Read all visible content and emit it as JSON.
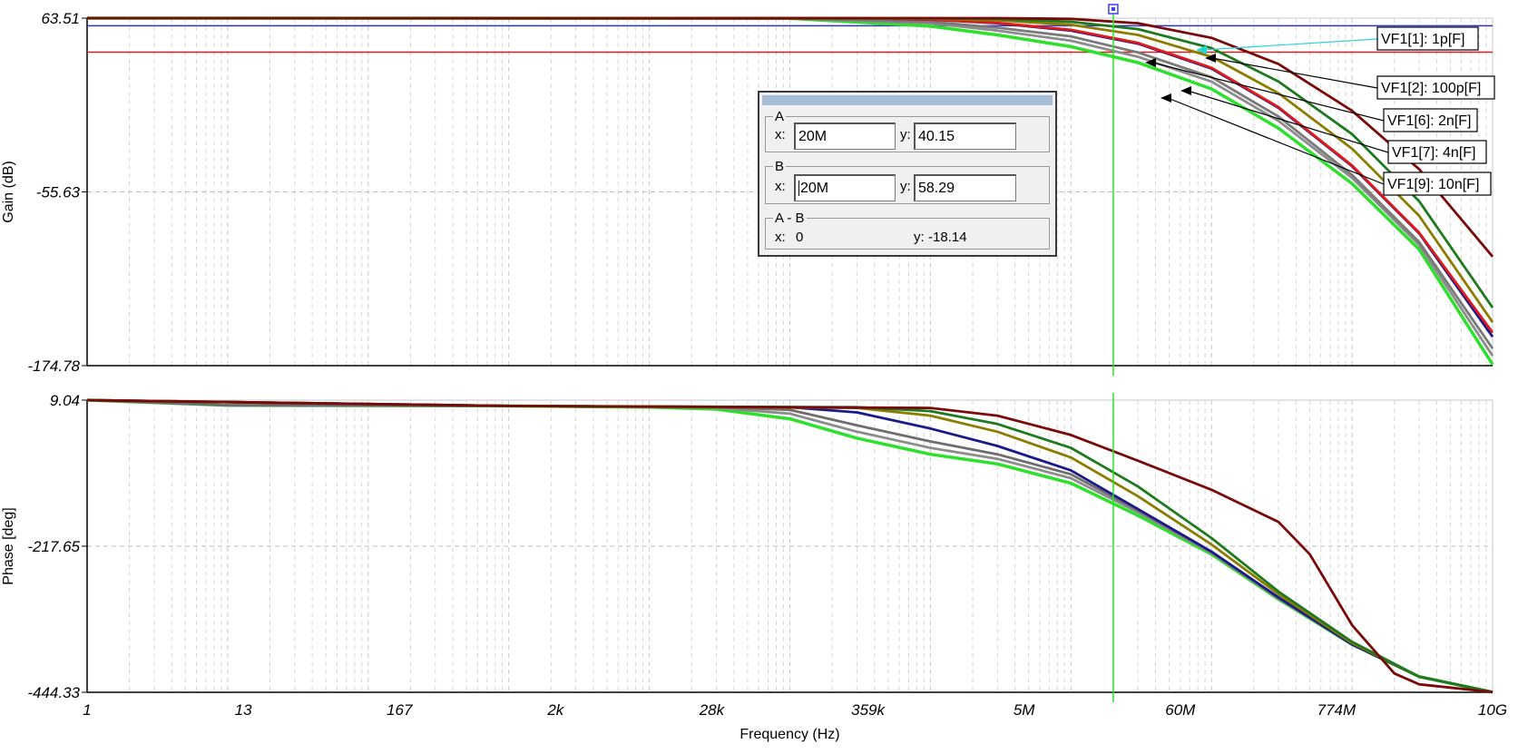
{
  "chart_data": [
    {
      "type": "line",
      "ylabel": "Gain (dB)",
      "y_ticks": [
        "63.51",
        "-55.63",
        "-174.78"
      ],
      "ylim": [
        -174.78,
        63.51
      ],
      "xscale": "log",
      "xlim": [
        1,
        10000000000
      ],
      "grid": true,
      "horizontal_markers": [
        {
          "y": 58.29,
          "color": "#2b35c8"
        },
        {
          "y": 40.15,
          "color": "#d42020"
        }
      ],
      "cursor_x": 20000000,
      "labels": [
        "VF1[1]: 1p[F]",
        "VF1[2]: 100p[F]",
        "VF1[6]: 2n[F]",
        "VF1[7]: 4n[F]",
        "VF1[9]: 10n[F]"
      ],
      "series": [
        {
          "color": "#2ce02c",
          "x": [
            1,
            100000,
            1000000,
            3000000,
            10000000,
            30000000,
            100000000,
            300000000,
            1000000000,
            3000000000,
            10000000000
          ],
          "y": [
            63.5,
            63.3,
            58,
            52,
            44,
            33,
            15,
            -12,
            -50,
            -95,
            -174
          ]
        },
        {
          "color": "#8c8c8c",
          "x": [
            1,
            100000,
            1000000,
            3000000,
            10000000,
            30000000,
            100000000,
            300000000,
            1000000000,
            3000000000,
            10000000000
          ],
          "y": [
            63.5,
            63.4,
            60,
            55,
            48,
            37,
            20,
            -7,
            -46,
            -92,
            -168
          ]
        },
        {
          "color": "#7a7a7a",
          "x": [
            1,
            100000,
            1000000,
            3000000,
            10000000,
            30000000,
            100000000,
            300000000,
            1000000000,
            3000000000,
            10000000000
          ],
          "y": [
            63.5,
            63.4,
            61,
            57,
            51,
            40,
            23,
            -4,
            -44,
            -90,
            -163
          ]
        },
        {
          "color": "#1a1a8a",
          "x": [
            1,
            300000,
            1000000,
            3000000,
            10000000,
            30000000,
            100000000,
            300000000,
            1000000000,
            3000000000,
            10000000000
          ],
          "y": [
            63.5,
            63.5,
            62.5,
            60,
            55,
            46,
            29,
            2,
            -38,
            -84,
            -155
          ]
        },
        {
          "color": "#e01b1b",
          "x": [
            1,
            300000,
            1000000,
            3000000,
            10000000,
            30000000,
            100000000,
            300000000,
            1000000000,
            3000000000,
            10000000000
          ],
          "y": [
            63.5,
            63.5,
            62.6,
            60.3,
            55.5,
            46.5,
            29.5,
            2.5,
            -37.5,
            -83.5,
            -152
          ]
        },
        {
          "color": "#8b7d00",
          "x": [
            1,
            1000000,
            3000000,
            10000000,
            30000000,
            100000000,
            300000000,
            1000000000,
            3000000000,
            10000000000
          ],
          "y": [
            63.5,
            63.2,
            62,
            59,
            52,
            37,
            12,
            -26,
            -72,
            -145
          ]
        },
        {
          "color": "#1e7a1e",
          "x": [
            1,
            1000000,
            3000000,
            10000000,
            30000000,
            100000000,
            300000000,
            1000000000,
            3000000000,
            10000000000
          ],
          "y": [
            63.5,
            63.4,
            63,
            61,
            56,
            43,
            20,
            -16,
            -62,
            -135
          ]
        },
        {
          "color": "#7a0a0a",
          "x": [
            1,
            3000000,
            10000000,
            30000000,
            100000000,
            300000000,
            1000000000,
            3000000000,
            10000000000
          ],
          "y": [
            63.5,
            63.5,
            63,
            60,
            50,
            32,
            0,
            -40,
            -100
          ]
        }
      ]
    },
    {
      "type": "line",
      "xlabel": "Frequency (Hz)",
      "ylabel": "Phase [deg]",
      "y_ticks": [
        "9.04",
        "-217.65",
        "-444.33"
      ],
      "ylim": [
        -444.33,
        9.04
      ],
      "xscale": "log",
      "xlim": [
        1,
        10000000000
      ],
      "x_ticks": [
        "1",
        "13",
        "167",
        "2k",
        "28k",
        "359k",
        "5M",
        "60M",
        "774M",
        "10G"
      ],
      "grid": true,
      "cursor_x": 20000000,
      "series": [
        {
          "color": "#2ce02c",
          "x": [
            1,
            10,
            1000,
            10000,
            30000,
            100000,
            300000,
            1000000,
            3000000,
            10000000,
            30000000,
            100000000,
            300000000,
            1000000000,
            3000000000,
            10000000000
          ],
          "y": [
            9,
            1,
            0,
            -2,
            -5,
            -20,
            -50,
            -75,
            -90,
            -120,
            -170,
            -230,
            -300,
            -370,
            -420,
            -444
          ]
        },
        {
          "color": "#8c8c8c",
          "x": [
            1,
            10,
            1000,
            10000,
            30000,
            100000,
            300000,
            1000000,
            3000000,
            10000000,
            30000000,
            100000000,
            300000000,
            1000000000,
            3000000000,
            10000000000
          ],
          "y": [
            9,
            1,
            0,
            -1.5,
            -3,
            -12,
            -40,
            -65,
            -82,
            -112,
            -165,
            -228,
            -299,
            -370,
            -420,
            -444
          ]
        },
        {
          "color": "#6e6e6e",
          "x": [
            1,
            10,
            1000,
            10000,
            30000,
            100000,
            300000,
            1000000,
            3000000,
            10000000,
            30000000,
            100000000,
            300000000,
            1000000000,
            3000000000,
            10000000000
          ],
          "y": [
            9,
            1,
            0,
            -1,
            -2,
            -6,
            -30,
            -55,
            -75,
            -106,
            -162,
            -227,
            -298,
            -370,
            -420,
            -444
          ]
        },
        {
          "color": "#1a1a8a",
          "x": [
            1,
            1000,
            100000,
            300000,
            1000000,
            3000000,
            10000000,
            30000000,
            100000000,
            300000000,
            1000000000,
            3000000000,
            10000000000
          ],
          "y": [
            9,
            0,
            -2,
            -10,
            -35,
            -62,
            -100,
            -160,
            -226,
            -297,
            -370,
            -420,
            -444
          ]
        },
        {
          "color": "#8b7d00",
          "x": [
            1,
            1000,
            300000,
            1000000,
            3000000,
            10000000,
            30000000,
            100000000,
            300000000,
            1000000000,
            3000000000,
            10000000000
          ],
          "y": [
            9,
            0,
            -3,
            -15,
            -40,
            -80,
            -140,
            -215,
            -292,
            -368,
            -420,
            -444
          ]
        },
        {
          "color": "#1e7a1e",
          "x": [
            1,
            1000,
            300000,
            1000000,
            3000000,
            10000000,
            30000000,
            100000000,
            300000000,
            1000000000,
            3000000000,
            10000000000
          ],
          "y": [
            9,
            0,
            -2,
            -8,
            -28,
            -65,
            -125,
            -205,
            -288,
            -366,
            -420,
            -444
          ]
        },
        {
          "color": "#7a0a0a",
          "x": [
            1,
            1000,
            1000000,
            3000000,
            10000000,
            30000000,
            100000000,
            300000000,
            500000000,
            1000000000,
            2000000000,
            3000000000,
            10000000000
          ],
          "y": [
            9,
            0,
            -3,
            -15,
            -45,
            -85,
            -130,
            -180,
            -230,
            -340,
            -415,
            -432,
            -444
          ]
        }
      ]
    }
  ],
  "readout": {
    "a_legend": "A",
    "a_x_label": "x:",
    "a_x": "20M",
    "a_y_label": "y:",
    "a_y": "40.15",
    "b_legend": "B",
    "b_x_label": "x:",
    "b_x": "20M",
    "b_y_label": "y:",
    "b_y": "58.29",
    "diff_legend": "A - B",
    "diff_x_label": "x:",
    "diff_x": "0",
    "diff_y_label": "y:",
    "diff_y": "-18.14"
  }
}
